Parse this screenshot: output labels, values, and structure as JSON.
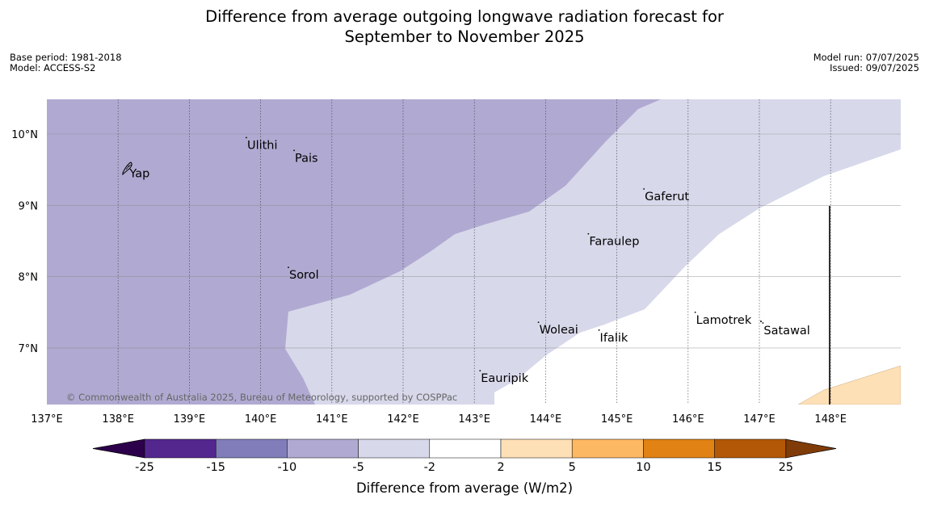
{
  "title": {
    "line1": "Difference from average outgoing longwave radiation forecast for",
    "line2": "September to November 2025"
  },
  "info_left": {
    "base_period": "Base period: 1981-2018",
    "model": "Model: ACCESS-S2"
  },
  "info_right": {
    "model_run": "Model run: 07/07/2025",
    "issued": "Issued: 09/07/2025"
  },
  "map": {
    "lon_range": [
      137.0,
      149.0
    ],
    "lat_range": [
      6.2,
      10.5
    ],
    "lon_ticks": [
      "137°E",
      "138°E",
      "139°E",
      "140°E",
      "141°E",
      "142°E",
      "143°E",
      "144°E",
      "145°E",
      "146°E",
      "147°E",
      "148°E"
    ],
    "lat_ticks": [
      "10°N",
      "9°N",
      "8°N",
      "7°N"
    ],
    "places": [
      {
        "name": "Ulithi",
        "lon": 139.8,
        "lat": 9.95
      },
      {
        "name": "Pais",
        "lon": 140.47,
        "lat": 9.77
      },
      {
        "name": "Yap",
        "lon": 138.15,
        "lat": 9.55
      },
      {
        "name": "Gaferut",
        "lon": 145.38,
        "lat": 9.23
      },
      {
        "name": "Faraulep",
        "lon": 144.6,
        "lat": 8.6
      },
      {
        "name": "Sorol",
        "lon": 140.39,
        "lat": 8.13
      },
      {
        "name": "Lamotrek",
        "lon": 146.1,
        "lat": 7.5
      },
      {
        "name": "Woleai",
        "lon": 143.9,
        "lat": 7.36
      },
      {
        "name": "Ifalik",
        "lon": 144.75,
        "lat": 7.25
      },
      {
        "name": "Satawal",
        "lon": 147.05,
        "lat": 7.35
      },
      {
        "name": "Eauripik",
        "lon": 143.08,
        "lat": 6.68
      }
    ],
    "copyright": "© Commonwealth of Australia 2025, Bureau of Meteorology, supported by COSPPac"
  },
  "legend": {
    "bounds": [
      "-25",
      "-15",
      "-10",
      "-5",
      "-2",
      "2",
      "5",
      "10",
      "15",
      "25"
    ],
    "label": "Difference from average (W/m2)",
    "colors": [
      "#54278f",
      "#807dba",
      "#b0aad2",
      "#d7d8ea",
      "#ffffff",
      "#fee0b6",
      "#fdb863",
      "#e08214",
      "#b35806"
    ],
    "extend_low_color": "#2d004b",
    "extend_high_color": "#7f3b08"
  }
}
